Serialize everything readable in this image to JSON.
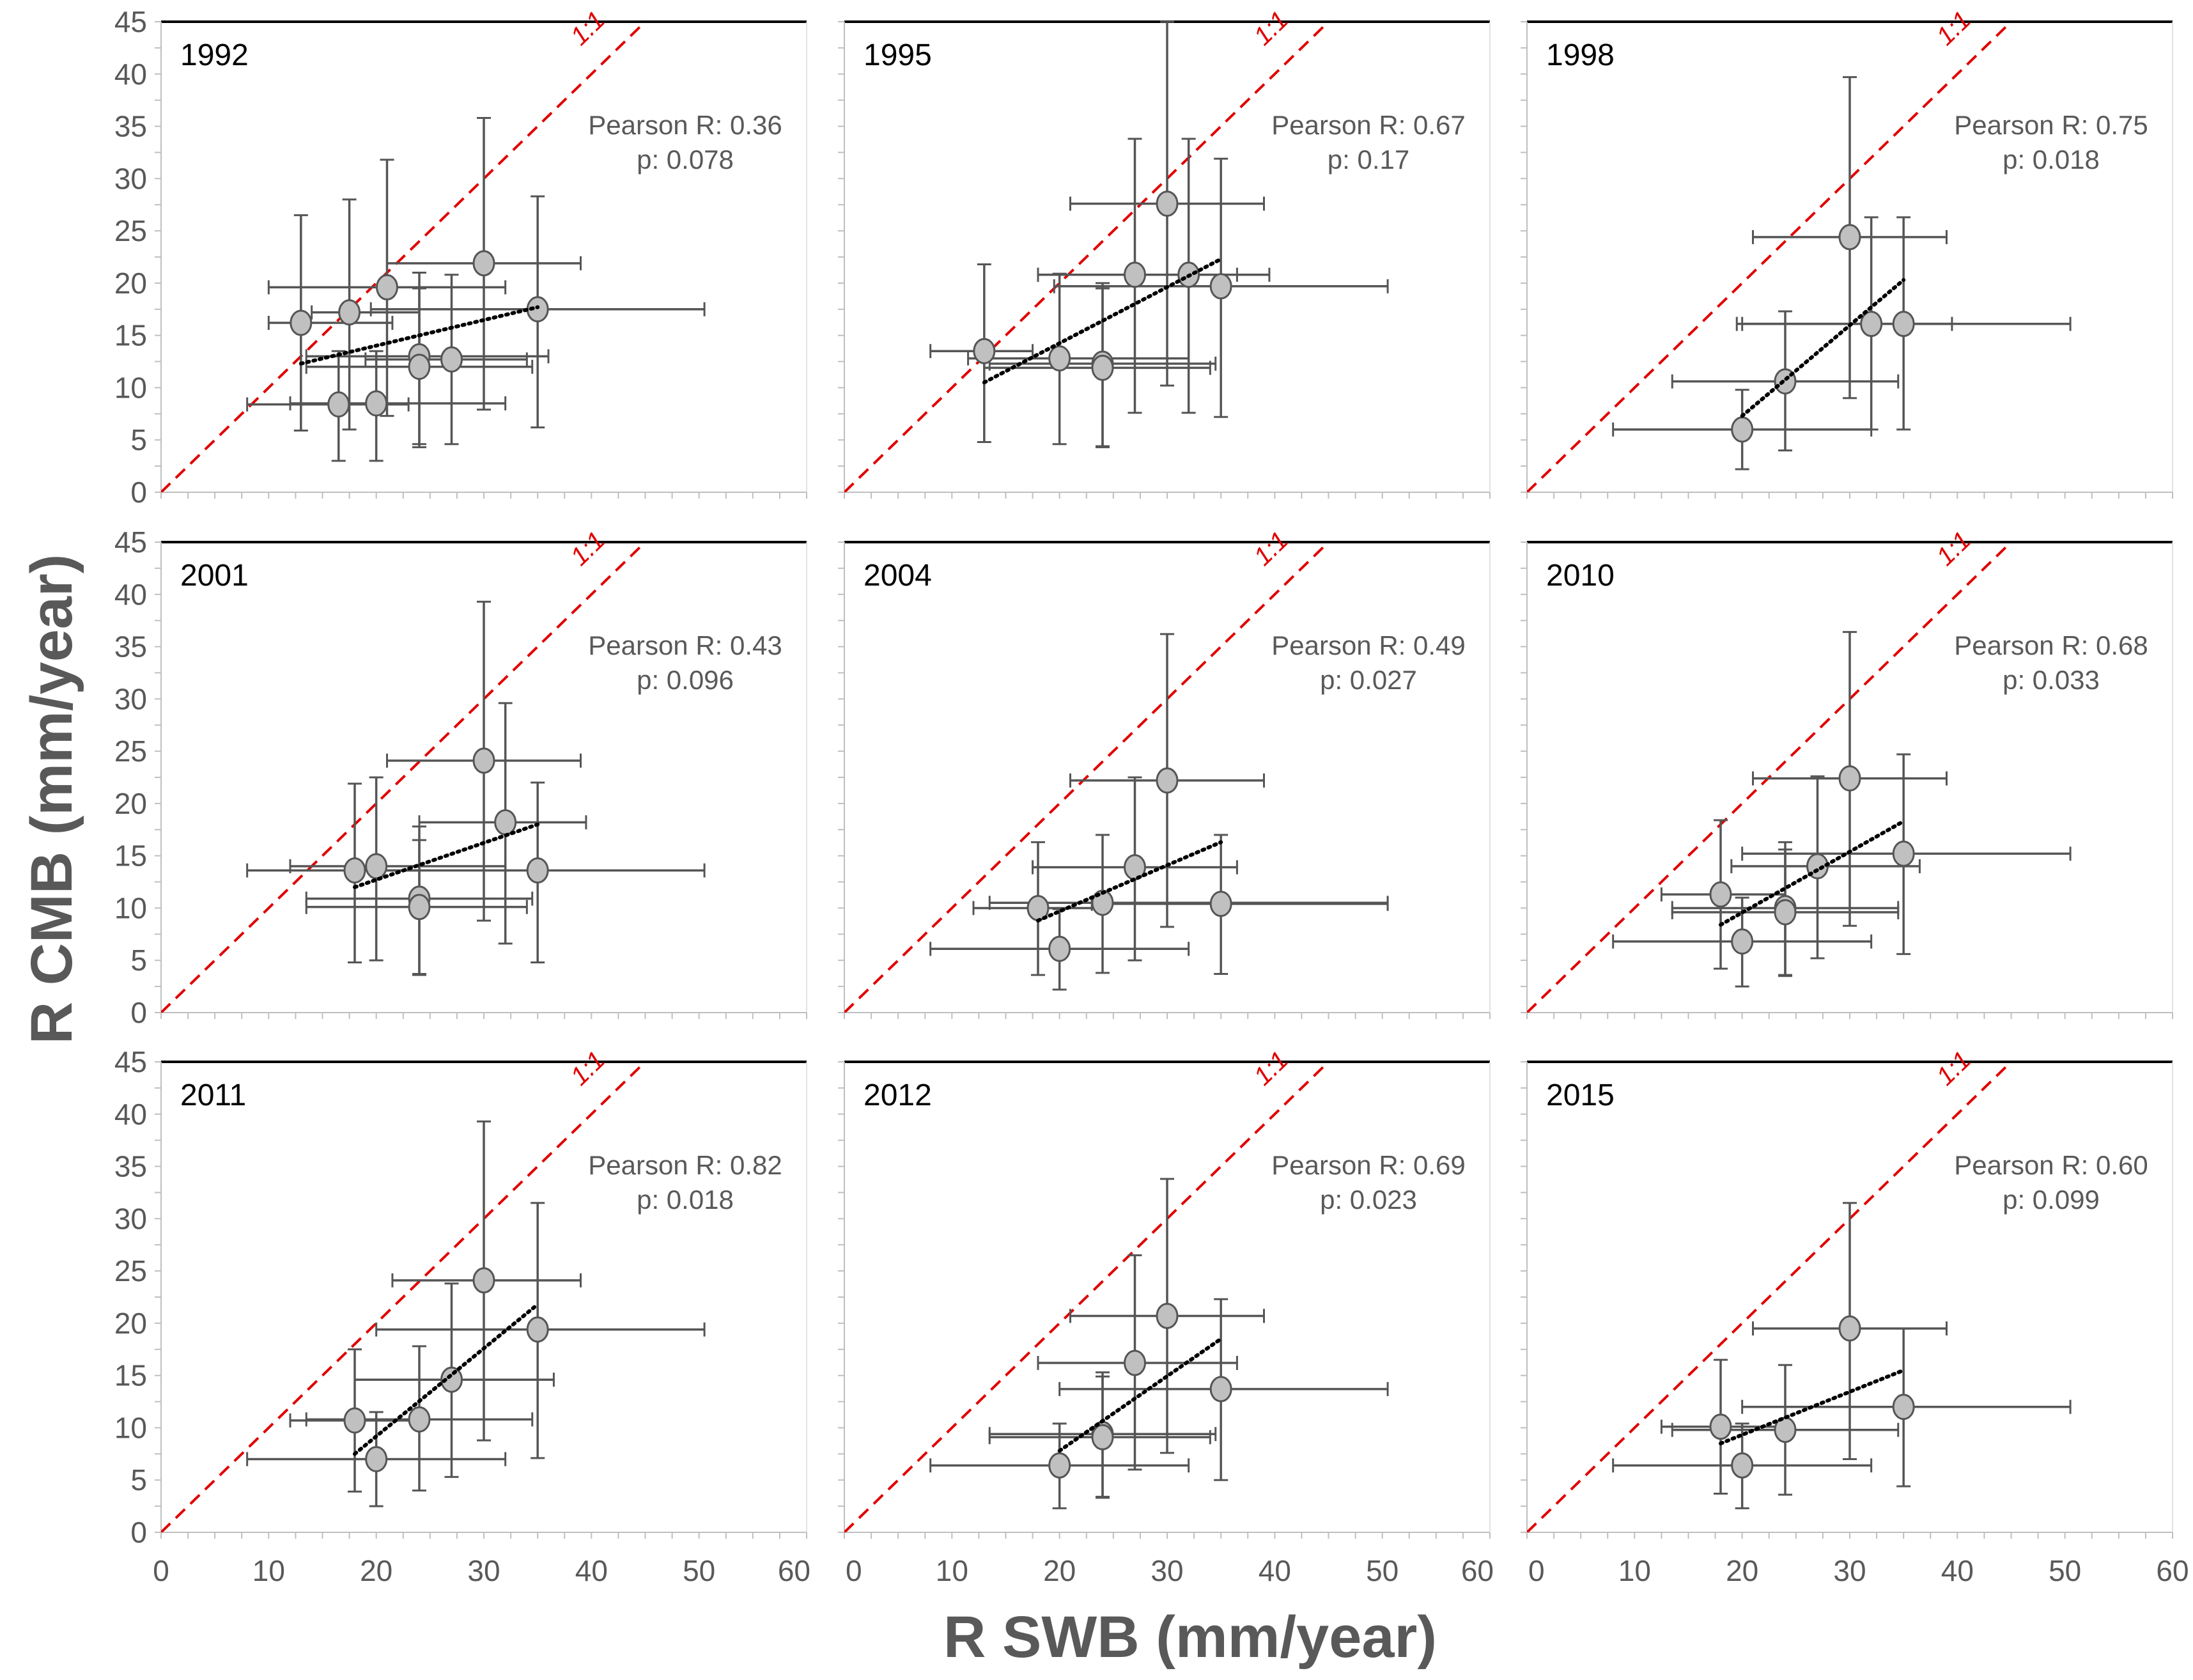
{
  "chart_data": {
    "type": "scatter",
    "xlabel": "R SWB (mm/year)",
    "ylabel": "R CMB (mm/year)",
    "xlim": [
      0,
      60
    ],
    "ylim": [
      0,
      45
    ],
    "x_ticks": [
      "0",
      "10",
      "20",
      "30",
      "40",
      "50",
      "60"
    ],
    "y_ticks": [
      "0",
      "5",
      "10",
      "15",
      "20",
      "25",
      "30",
      "35",
      "40",
      "45"
    ],
    "reference_line_label": "1:1",
    "colors": {
      "reference": "#e00000",
      "marker_fill": "#c0c0c0",
      "marker_edge": "#555555",
      "errorbar": "#555555",
      "trend": "#000000",
      "frame": "#000000"
    },
    "panels": [
      {
        "year": "1992",
        "pearson": "Pearson R: 0.36",
        "p": "p: 0.078",
        "trend": [
          [
            13,
            12.3
          ],
          [
            35,
            17.7
          ]
        ],
        "points": [
          {
            "x": 13,
            "y": 16.2,
            "xerr": [
              10,
              21.5
            ],
            "yerr": [
              5.9,
              26.5
            ]
          },
          {
            "x": 17.5,
            "y": 17.2,
            "xerr": [
              14,
              24
            ],
            "yerr": [
              6,
              28
            ]
          },
          {
            "x": 21,
            "y": 19.6,
            "xerr": [
              10,
              32
            ],
            "yerr": [
              7.3,
              31.8
            ]
          },
          {
            "x": 30,
            "y": 21.9,
            "xerr": [
              21,
              39
            ],
            "yerr": [
              7.9,
              35.8
            ]
          },
          {
            "x": 35,
            "y": 17.5,
            "xerr": [
              19.5,
              50.5
            ],
            "yerr": [
              6.2,
              28.3
            ]
          },
          {
            "x": 24,
            "y": 13,
            "xerr": [
              13.5,
              36
            ],
            "yerr": [
              4.6,
              21
            ]
          },
          {
            "x": 24,
            "y": 12,
            "xerr": [
              13.5,
              34.5
            ],
            "yerr": [
              4.3,
              19.5
            ]
          },
          {
            "x": 27,
            "y": 12.7,
            "xerr": [
              19,
              34
            ],
            "yerr": [
              4.6,
              20.8
            ]
          },
          {
            "x": 16.5,
            "y": 8.4,
            "xerr": [
              8,
              23
            ],
            "yerr": [
              3,
              13.5
            ]
          },
          {
            "x": 20,
            "y": 8.5,
            "xerr": [
              12,
              32
            ],
            "yerr": [
              3,
              13.5
            ]
          }
        ]
      },
      {
        "year": "1995",
        "pearson": "Pearson R: 0.67",
        "p": "p: 0.17",
        "trend": [
          [
            13,
            10.5
          ],
          [
            35,
            22.3
          ]
        ],
        "points": [
          {
            "x": 13,
            "y": 13.5,
            "xerr": [
              8,
              17.5
            ],
            "yerr": [
              4.8,
              21.8
            ]
          },
          {
            "x": 30,
            "y": 27.6,
            "xerr": [
              21,
              39
            ],
            "yerr": [
              10.2,
              45
            ]
          },
          {
            "x": 27,
            "y": 20.8,
            "xerr": [
              18,
              36.5
            ],
            "yerr": [
              7.6,
              33.8
            ]
          },
          {
            "x": 32,
            "y": 20.8,
            "xerr": [
              18,
              39.5
            ],
            "yerr": [
              7.6,
              33.8
            ]
          },
          {
            "x": 35,
            "y": 19.7,
            "xerr": [
              19.5,
              50.5
            ],
            "yerr": [
              7.2,
              31.9
            ]
          },
          {
            "x": 20,
            "y": 12.8,
            "xerr": [
              11.5,
              32
            ],
            "yerr": [
              4.6,
              20.9
            ]
          },
          {
            "x": 24,
            "y": 12.3,
            "xerr": [
              13.5,
              34.5
            ],
            "yerr": [
              4.4,
              20
            ]
          },
          {
            "x": 24,
            "y": 11.9,
            "xerr": [
              13,
              34
            ],
            "yerr": [
              4.3,
              19.5
            ]
          }
        ]
      },
      {
        "year": "1998",
        "pearson": "Pearson R: 0.75",
        "p": "p: 0.018",
        "trend": [
          [
            20,
            7.3
          ],
          [
            35,
            20.3
          ]
        ],
        "points": [
          {
            "x": 30,
            "y": 24.4,
            "xerr": [
              21,
              39
            ],
            "yerr": [
              9,
              39.7
            ]
          },
          {
            "x": 32,
            "y": 16.1,
            "xerr": [
              20,
              39.5
            ],
            "yerr": [
              6,
              26.3
            ]
          },
          {
            "x": 35,
            "y": 16.1,
            "xerr": [
              19.5,
              50.5
            ],
            "yerr": [
              6,
              26.3
            ]
          },
          {
            "x": 24,
            "y": 10.6,
            "xerr": [
              13.5,
              34.5
            ],
            "yerr": [
              4,
              17.3
            ]
          },
          {
            "x": 20,
            "y": 6,
            "xerr": [
              8,
              32
            ],
            "yerr": [
              2.2,
              9.8
            ]
          }
        ]
      },
      {
        "year": "2001",
        "pearson": "Pearson R: 0.43",
        "p": "p: 0.096",
        "trend": [
          [
            18,
            12
          ],
          [
            35,
            18
          ]
        ],
        "points": [
          {
            "x": 30,
            "y": 24.1,
            "xerr": [
              21,
              39
            ],
            "yerr": [
              8.8,
              39.3
            ]
          },
          {
            "x": 32,
            "y": 18.2,
            "xerr": [
              24,
              39.5
            ],
            "yerr": [
              6.6,
              29.6
            ]
          },
          {
            "x": 18,
            "y": 13.6,
            "xerr": [
              8,
              24
            ],
            "yerr": [
              4.8,
              21.9
            ]
          },
          {
            "x": 20,
            "y": 14,
            "xerr": [
              12,
              32
            ],
            "yerr": [
              5,
              22.5
            ]
          },
          {
            "x": 35,
            "y": 13.6,
            "xerr": [
              19.5,
              50.5
            ],
            "yerr": [
              4.8,
              22
            ]
          },
          {
            "x": 24,
            "y": 10.9,
            "xerr": [
              13.5,
              34.5
            ],
            "yerr": [
              3.7,
              17.8
            ]
          },
          {
            "x": 24,
            "y": 10.1,
            "xerr": [
              13.5,
              34
            ],
            "yerr": [
              3.6,
              16.5
            ]
          }
        ]
      },
      {
        "year": "2004",
        "pearson": "Pearson R: 0.49",
        "p": "p: 0.027",
        "trend": [
          [
            18,
            8.8
          ],
          [
            35,
            16.3
          ]
        ],
        "points": [
          {
            "x": 30,
            "y": 22.2,
            "xerr": [
              21,
              39
            ],
            "yerr": [
              8.2,
              36.2
            ]
          },
          {
            "x": 27,
            "y": 13.9,
            "xerr": [
              17.5,
              36.5
            ],
            "yerr": [
              5,
              22.5
            ]
          },
          {
            "x": 18,
            "y": 10,
            "xerr": [
              12,
              24
            ],
            "yerr": [
              3.6,
              16.3
            ]
          },
          {
            "x": 24,
            "y": 10.5,
            "xerr": [
              13.5,
              50.5
            ],
            "yerr": [
              3.8,
              17
            ]
          },
          {
            "x": 35,
            "y": 10.4,
            "xerr": [
              23,
              50.5
            ],
            "yerr": [
              3.7,
              17
            ]
          },
          {
            "x": 20,
            "y": 6.1,
            "xerr": [
              8,
              32
            ],
            "yerr": [
              2.2,
              9.9
            ]
          }
        ]
      },
      {
        "year": "2010",
        "pearson": "Pearson R: 0.68",
        "p": "p: 0.033",
        "trend": [
          [
            18,
            8.4
          ],
          [
            35,
            18.3
          ]
        ],
        "points": [
          {
            "x": 30,
            "y": 22.4,
            "xerr": [
              21,
              39
            ],
            "yerr": [
              8.3,
              36.4
            ]
          },
          {
            "x": 35,
            "y": 15.2,
            "xerr": [
              20,
              50.5
            ],
            "yerr": [
              5.6,
              24.7
            ]
          },
          {
            "x": 27,
            "y": 14,
            "xerr": [
              19,
              36.5
            ],
            "yerr": [
              5.2,
              22.6
            ]
          },
          {
            "x": 18,
            "y": 11.3,
            "xerr": [
              12.5,
              24
            ],
            "yerr": [
              4.2,
              18.4
            ]
          },
          {
            "x": 24,
            "y": 10,
            "xerr": [
              13.5,
              34.5
            ],
            "yerr": [
              3.6,
              16.3
            ]
          },
          {
            "x": 24,
            "y": 9.6,
            "xerr": [
              13.5,
              34.5
            ],
            "yerr": [
              3.5,
              15.6
            ]
          },
          {
            "x": 20,
            "y": 6.8,
            "xerr": [
              8,
              32
            ],
            "yerr": [
              2.5,
              11
            ]
          }
        ]
      },
      {
        "year": "2011",
        "pearson": "Pearson R: 0.82",
        "p": "p: 0.018",
        "trend": [
          [
            18,
            7.5
          ],
          [
            35,
            21.8
          ]
        ],
        "points": [
          {
            "x": 30,
            "y": 24.1,
            "xerr": [
              21.5,
              39
            ],
            "yerr": [
              8.8,
              39.3
            ]
          },
          {
            "x": 35,
            "y": 19.4,
            "xerr": [
              20,
              50.5
            ],
            "yerr": [
              7.1,
              31.5
            ]
          },
          {
            "x": 27,
            "y": 14.6,
            "xerr": [
              18,
              36.5
            ],
            "yerr": [
              5.3,
              23.8
            ]
          },
          {
            "x": 18,
            "y": 10.7,
            "xerr": [
              12,
              24
            ],
            "yerr": [
              3.9,
              17.5
            ]
          },
          {
            "x": 24,
            "y": 10.8,
            "xerr": [
              13.5,
              34.5
            ],
            "yerr": [
              4,
              17.8
            ]
          },
          {
            "x": 20,
            "y": 7,
            "xerr": [
              8,
              32
            ],
            "yerr": [
              2.5,
              11.5
            ]
          }
        ]
      },
      {
        "year": "2012",
        "pearson": "Pearson R: 0.69",
        "p": "p: 0.023",
        "trend": [
          [
            20,
            7.8
          ],
          [
            35,
            18.5
          ]
        ],
        "points": [
          {
            "x": 30,
            "y": 20.7,
            "xerr": [
              21,
              39
            ],
            "yerr": [
              7.6,
              33.8
            ]
          },
          {
            "x": 27,
            "y": 16.2,
            "xerr": [
              18,
              36.5
            ],
            "yerr": [
              6,
              26.5
            ]
          },
          {
            "x": 35,
            "y": 13.7,
            "xerr": [
              20,
              50.5
            ],
            "yerr": [
              5,
              22.3
            ]
          },
          {
            "x": 24,
            "y": 9.4,
            "xerr": [
              13.5,
              34.5
            ],
            "yerr": [
              3.4,
              15.3
            ]
          },
          {
            "x": 24,
            "y": 9.1,
            "xerr": [
              13.5,
              34
            ],
            "yerr": [
              3.3,
              14.9
            ]
          },
          {
            "x": 20,
            "y": 6.4,
            "xerr": [
              8,
              32
            ],
            "yerr": [
              2.3,
              10.4
            ]
          }
        ]
      },
      {
        "year": "2015",
        "pearson": "Pearson R: 0.60",
        "p": "p: 0.099",
        "trend": [
          [
            18,
            8.5
          ],
          [
            35,
            15.5
          ]
        ],
        "points": [
          {
            "x": 30,
            "y": 19.5,
            "xerr": [
              21,
              39
            ],
            "yerr": [
              7,
              31.5
            ]
          },
          {
            "x": 35,
            "y": 12,
            "xerr": [
              20,
              50.5
            ],
            "yerr": [
              4.4,
              19.5
            ]
          },
          {
            "x": 18,
            "y": 10.1,
            "xerr": [
              12.5,
              24
            ],
            "yerr": [
              3.7,
              16.5
            ]
          },
          {
            "x": 24,
            "y": 9.8,
            "xerr": [
              13.5,
              34.5
            ],
            "yerr": [
              3.6,
              16
            ]
          },
          {
            "x": 20,
            "y": 6.4,
            "xerr": [
              8,
              32
            ],
            "yerr": [
              2.3,
              10.4
            ]
          }
        ]
      }
    ]
  }
}
